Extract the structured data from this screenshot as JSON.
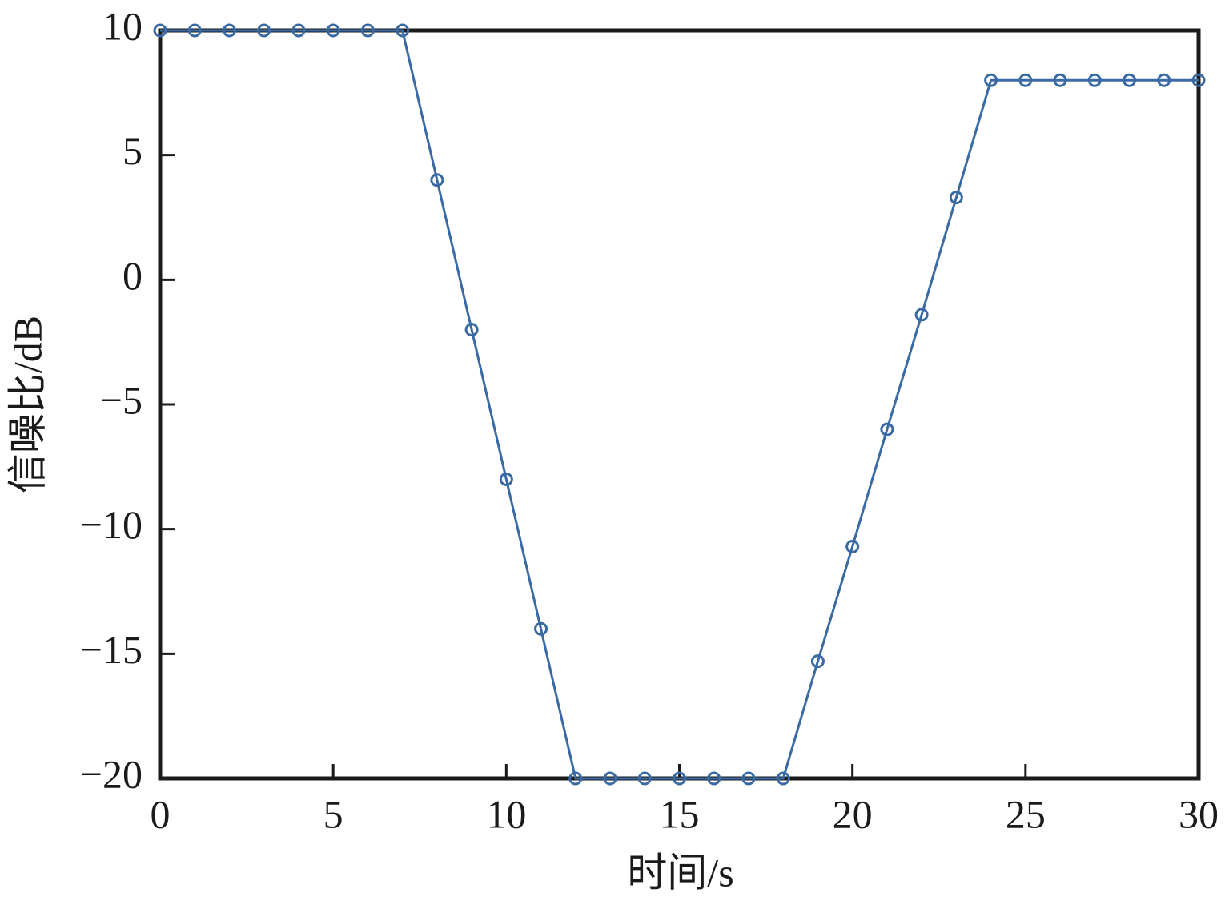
{
  "chart_data": {
    "type": "line",
    "x_label": "时间/s",
    "y_label": "信噪比/dB",
    "x": [
      0,
      1,
      2,
      3,
      4,
      5,
      6,
      7,
      8,
      9,
      10,
      11,
      12,
      13,
      14,
      15,
      16,
      17,
      18,
      19,
      20,
      21,
      22,
      23,
      24,
      25,
      26,
      27,
      28,
      29,
      30
    ],
    "values": [
      10,
      10,
      10,
      10,
      10,
      10,
      10,
      10,
      4,
      -2,
      -8,
      -14,
      -20,
      -20,
      -20,
      -20,
      -20,
      -20,
      -20,
      -15.3,
      -10.7,
      -6,
      -1.4,
      3.3,
      8,
      8,
      8,
      8,
      8,
      8,
      8
    ],
    "color": "#3a6aa3",
    "xlim": [
      0,
      30
    ],
    "xticks": [
      0,
      5,
      10,
      15,
      20,
      25,
      30
    ],
    "ylim": [
      -20,
      10
    ],
    "yticks": [
      {
        "value": -20,
        "label": "−20"
      },
      {
        "value": -15,
        "label": "−15"
      },
      {
        "value": -10,
        "label": "−10"
      },
      {
        "value": -5,
        "label": "−5"
      },
      0,
      5,
      10
    ]
  }
}
